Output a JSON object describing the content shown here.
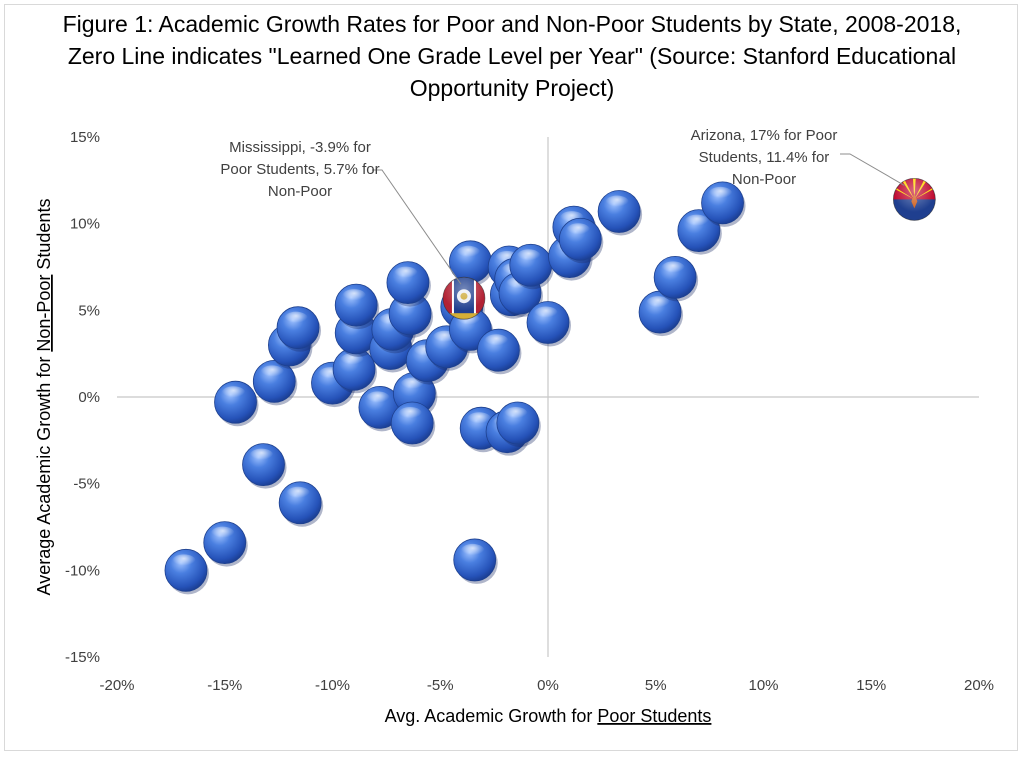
{
  "chart_data": {
    "type": "scatter",
    "title": "Figure 1: Academic Growth Rates for Poor and Non-Poor Students by State, 2008-2018, Zero Line indicates \"Learned One Grade Level per Year\" (Source: Stanford Educational Opportunity Project)",
    "xlabel": {
      "prefix": "Avg. Academic Growth for ",
      "underlined": "Poor Students",
      "suffix": ""
    },
    "ylabel": {
      "prefix": "Average Academic Growth for ",
      "underlined": "Non-Poor",
      "suffix": " Students"
    },
    "xlim": [
      -20,
      20
    ],
    "ylim": [
      -15,
      15
    ],
    "x_ticks": [
      -20,
      -15,
      -10,
      -5,
      0,
      5,
      10,
      15,
      20
    ],
    "y_ticks": [
      -15,
      -10,
      -5,
      0,
      5,
      10,
      15
    ],
    "tick_suffix": "%",
    "gridlines": false,
    "marker_color": "#3b63c4",
    "series": [
      {
        "values": [
          {
            "x": -16.8,
            "y": -10.0
          },
          {
            "x": -15.0,
            "y": -8.4
          },
          {
            "x": -14.5,
            "y": -0.3
          },
          {
            "x": -13.2,
            "y": -3.9
          },
          {
            "x": -12.7,
            "y": 0.9
          },
          {
            "x": -12.0,
            "y": 3.0
          },
          {
            "x": -11.6,
            "y": 4.0
          },
          {
            "x": -11.5,
            "y": -6.1
          },
          {
            "x": -10.0,
            "y": 0.8
          },
          {
            "x": -9.0,
            "y": 1.6
          },
          {
            "x": -8.9,
            "y": 3.7
          },
          {
            "x": -8.9,
            "y": 5.3
          },
          {
            "x": -7.8,
            "y": -0.6
          },
          {
            "x": -7.3,
            "y": 2.8
          },
          {
            "x": -7.2,
            "y": 3.9
          },
          {
            "x": -6.4,
            "y": 4.8
          },
          {
            "x": -6.5,
            "y": 6.6
          },
          {
            "x": -6.2,
            "y": 0.2
          },
          {
            "x": -6.3,
            "y": -1.5
          },
          {
            "x": -5.6,
            "y": 2.1
          },
          {
            "x": -4.7,
            "y": 2.9
          },
          {
            "x": -4.0,
            "y": 5.2
          },
          {
            "x": -3.6,
            "y": 7.8
          },
          {
            "x": -3.6,
            "y": 3.9
          },
          {
            "x": -3.4,
            "y": -9.4
          },
          {
            "x": -3.1,
            "y": -1.8
          },
          {
            "x": -2.3,
            "y": 2.7
          },
          {
            "x": -1.8,
            "y": 7.5
          },
          {
            "x": -1.7,
            "y": 5.9
          },
          {
            "x": -1.9,
            "y": -2.0
          },
          {
            "x": -1.5,
            "y": 6.8
          },
          {
            "x": -1.3,
            "y": 6.0
          },
          {
            "x": -1.4,
            "y": -1.5
          },
          {
            "x": -0.8,
            "y": 7.6
          },
          {
            "x": 0.0,
            "y": 4.3
          },
          {
            "x": 1.0,
            "y": 8.1
          },
          {
            "x": 1.2,
            "y": 9.8
          },
          {
            "x": 1.5,
            "y": 9.1
          },
          {
            "x": 3.3,
            "y": 10.7
          },
          {
            "x": 5.2,
            "y": 4.9
          },
          {
            "x": 5.9,
            "y": 6.9
          },
          {
            "x": 7.0,
            "y": 9.6
          },
          {
            "x": 8.1,
            "y": 11.2
          }
        ]
      }
    ],
    "highlights": [
      {
        "x": -3.9,
        "y": 5.7,
        "flag": "mississippi",
        "label_lines": [
          "Mississippi, -3.9% for",
          "Poor Students, 5.7% for",
          "Non-Poor"
        ]
      },
      {
        "x": 17.0,
        "y": 11.4,
        "flag": "arizona",
        "label_lines": [
          "Arizona, 17% for Poor",
          "Students, 11.4% for",
          "Non-Poor"
        ]
      }
    ]
  }
}
